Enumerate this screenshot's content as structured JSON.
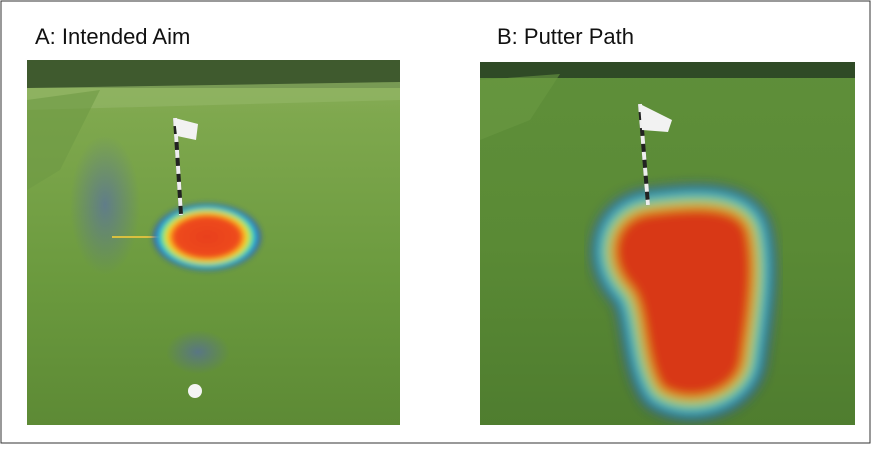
{
  "panels": [
    {
      "title": "A: Intended Aim"
    },
    {
      "title": "B: Putter Path"
    }
  ]
}
